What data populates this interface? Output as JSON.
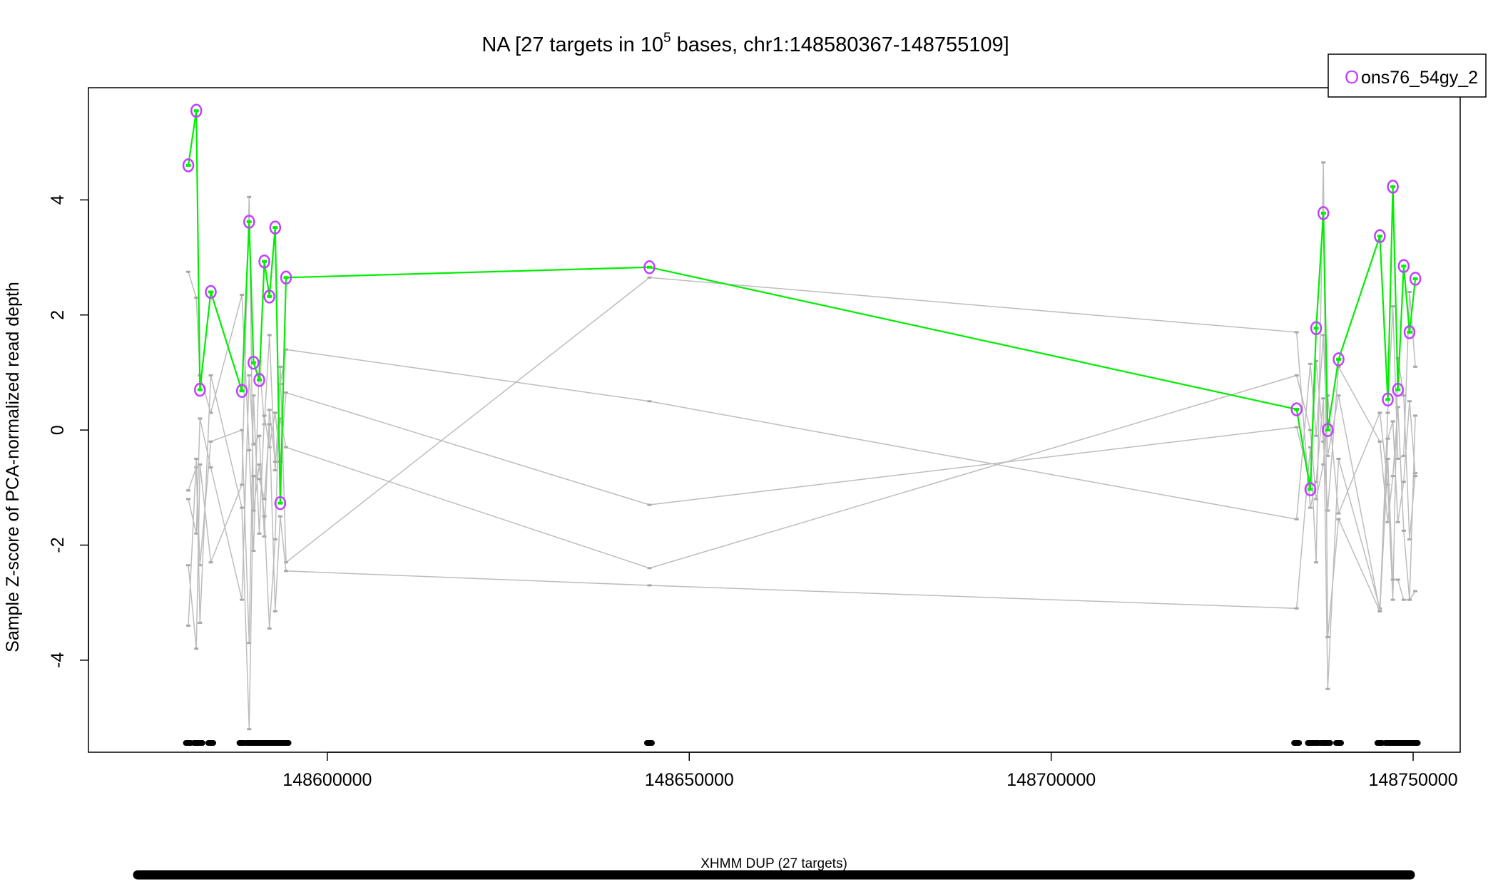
{
  "chart_data": {
    "type": "line",
    "title_main": "NA [27 targets in 10",
    "title_sup": "5",
    "title_rest": " bases, chr1:148580367-148755109]",
    "ylabel": "Sample Z-score of PCA-normalized read depth",
    "xlabel": "",
    "xlim": [
      148567000,
      148756500
    ],
    "ylim": [
      -5.6,
      5.95
    ],
    "x_ticks": [
      148600000,
      148650000,
      148700000,
      148750000
    ],
    "x_tick_labels": [
      "148600000",
      "148650000",
      "148700000",
      "148750000"
    ],
    "y_ticks": [
      -4,
      -2,
      0,
      2,
      4
    ],
    "y_tick_labels": [
      "-4",
      "-2",
      "0",
      "2",
      "4"
    ],
    "grid": false,
    "legend_position": "top-right",
    "legend": [
      {
        "label": "ons76_54gy_2",
        "color": "#c040ff",
        "marker": "O"
      }
    ],
    "highlight_color": "#00ee00",
    "marker_color": "#c040ff",
    "background_color": "#bdbdbd",
    "x": [
      148580800,
      148581900,
      148582400,
      148583900,
      148588200,
      148589200,
      148589800,
      148590600,
      148591300,
      148592000,
      148592800,
      148593500,
      148594300,
      148644500,
      148733900,
      148735800,
      148736600,
      148737600,
      148738200,
      148739700,
      148745400,
      148746500,
      148747200,
      148747900,
      148748700,
      148749500,
      148750300
    ],
    "series": [
      {
        "name": "ons76_54gy_2",
        "values": [
          4.6,
          5.55,
          0.7,
          2.4,
          0.68,
          3.62,
          1.17,
          0.87,
          2.93,
          2.32,
          3.52,
          -1.27,
          2.65,
          2.83,
          0.36,
          -1.03,
          1.77,
          3.77,
          0.0,
          1.23,
          3.37,
          0.53,
          4.23,
          0.7,
          2.85,
          1.7,
          2.63
        ]
      },
      {
        "name": "",
        "values": [
          2.75,
          2.3,
          0.95,
          0.3,
          2.35,
          -0.35,
          -2.1,
          1.2,
          0.1,
          1.65,
          -0.7,
          0.8,
          1.4,
          0.5,
          -1.55,
          1.15,
          -0.1,
          1.65,
          -0.45,
          0.6,
          -3.15,
          0.3,
          2.15,
          -0.5,
          -0.45,
          2.4,
          1.1
        ]
      },
      {
        "name": "",
        "values": [
          -1.05,
          -0.65,
          -2.35,
          -0.2,
          0.0,
          -3.7,
          0.6,
          -1.8,
          0.25,
          -0.3,
          0.3,
          -0.55,
          0.65,
          -1.3,
          0.05,
          -0.9,
          1.2,
          -0.2,
          -1.4,
          1.1,
          -0.2,
          -1.6,
          -0.8,
          0.4,
          -1.75,
          -2.95,
          0.25
        ]
      },
      {
        "name": "",
        "values": [
          -1.2,
          -1.8,
          0.2,
          -0.65,
          -2.95,
          0.95,
          -0.25,
          -0.1,
          -1.85,
          0.35,
          -0.55,
          0.2,
          -0.3,
          -2.4,
          0.95,
          0.0,
          -1.2,
          -0.6,
          0.6,
          -1.45,
          0.3,
          -0.95,
          -2.95,
          1.25,
          0.6,
          -1.9,
          -0.75
        ]
      },
      {
        "name": "",
        "values": [
          -2.35,
          -3.8,
          -0.6,
          -2.3,
          -0.95,
          4.05,
          -1.4,
          -0.6,
          -1.5,
          -3.45,
          -1.9,
          1.1,
          -2.3,
          2.65,
          1.7,
          -1.35,
          -0.9,
          0.55,
          -4.5,
          -0.5,
          -3.1,
          -0.15,
          0.15,
          -1.6,
          -0.9,
          0.5,
          -0.8
        ]
      },
      {
        "name": "",
        "values": [
          -3.4,
          -0.5,
          -3.35,
          0.95,
          -1.35,
          -5.2,
          -0.8,
          -0.85,
          -1.2,
          0.1,
          -3.15,
          -1.5,
          -2.45,
          -2.7,
          -3.1,
          -0.3,
          -2.3,
          4.65,
          -3.6,
          -1.55,
          -3.15,
          -0.5,
          -2.6,
          -2.6,
          -2.95,
          -2.95,
          -2.8
        ]
      }
    ],
    "bottom_label": "XHMM DUP (27 targets)"
  }
}
